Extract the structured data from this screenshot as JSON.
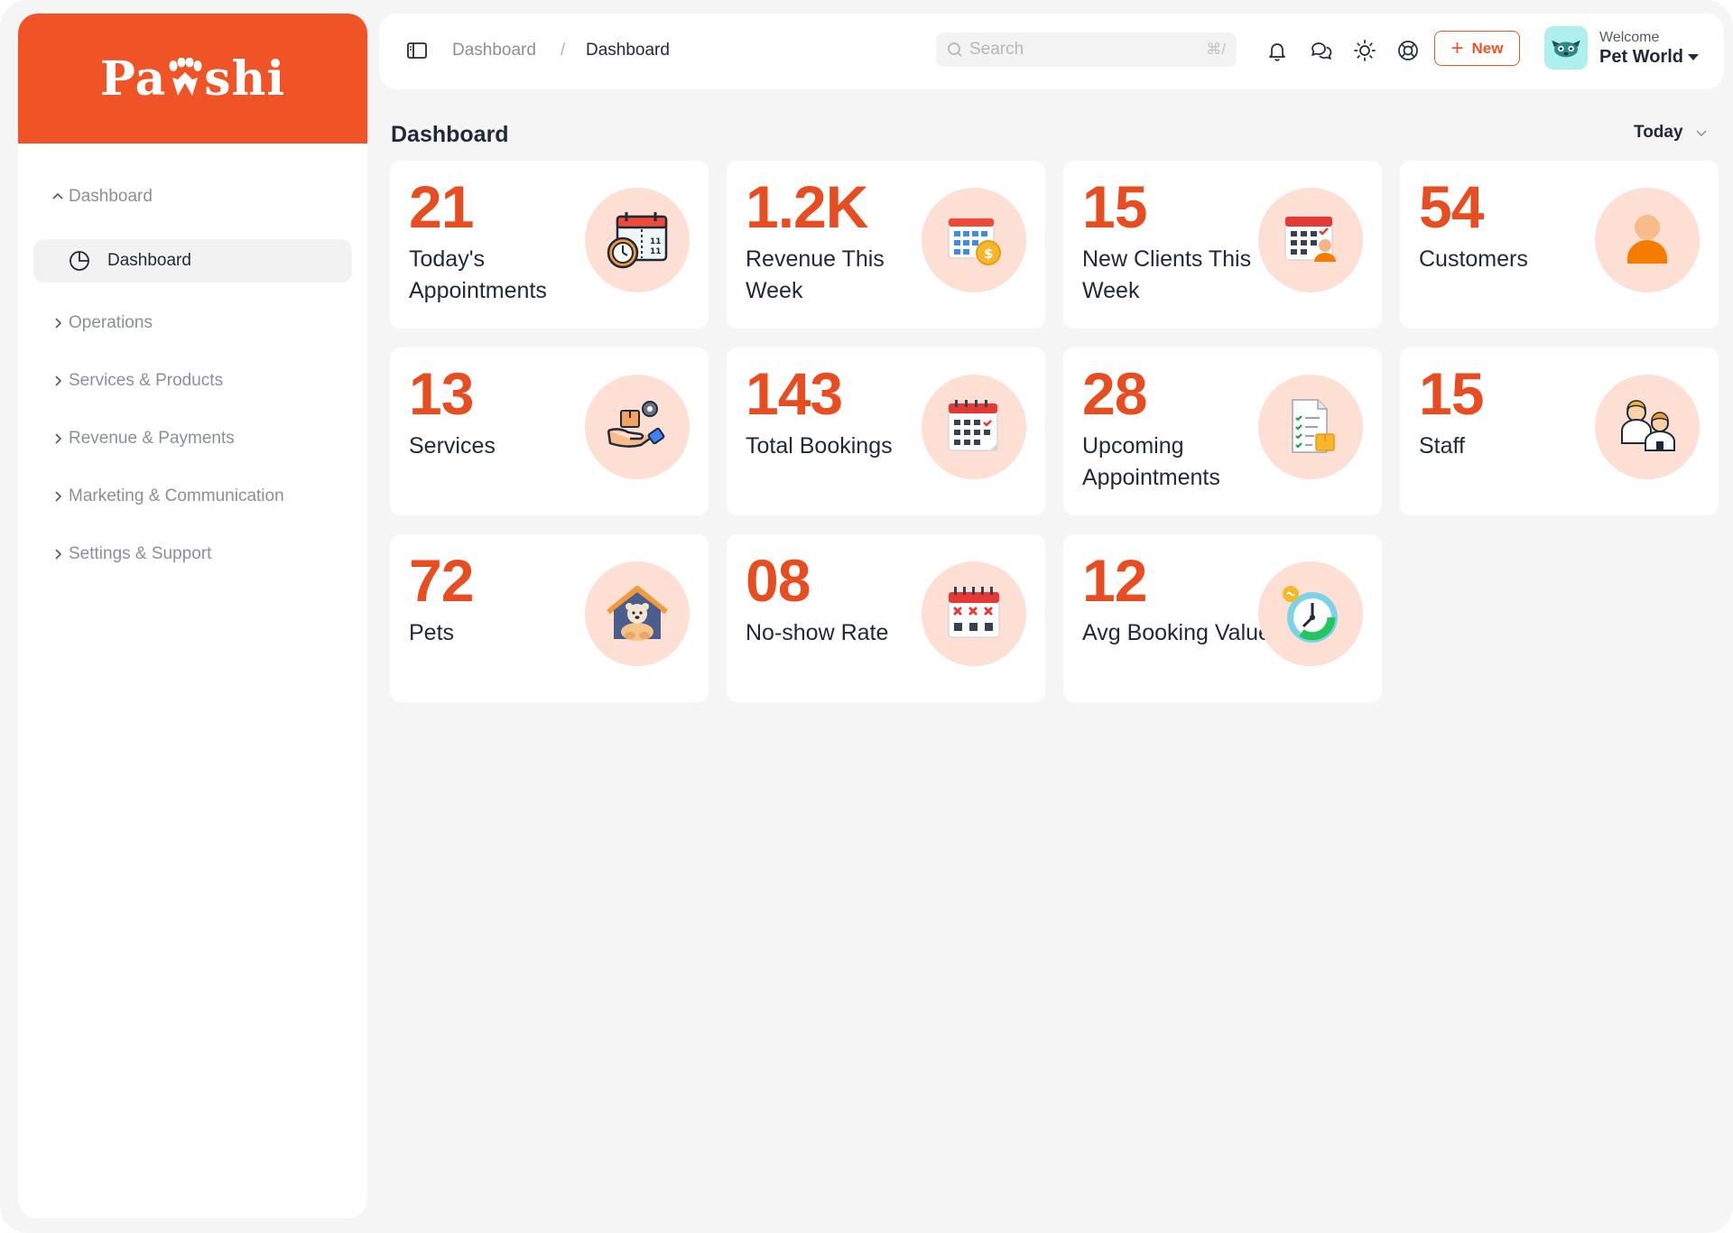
{
  "brand": {
    "name_left": "Pa",
    "name_right": "shi",
    "color": "#f05426"
  },
  "sidebar": {
    "sections": [
      {
        "label": "Dashboard",
        "expanded": true
      },
      {
        "label": "Operations",
        "expanded": false
      },
      {
        "label": "Services & Products",
        "expanded": false
      },
      {
        "label": "Revenue & Payments",
        "expanded": false
      },
      {
        "label": "Marketing & Communication",
        "expanded": false
      },
      {
        "label": "Settings & Support",
        "expanded": false
      }
    ],
    "active_item": {
      "label": "Dashboard",
      "icon": "pie-chart-icon"
    }
  },
  "header": {
    "breadcrumb": [
      "Dashboard",
      "Dashboard"
    ],
    "breadcrumb_separator": "/",
    "search": {
      "placeholder": "Search",
      "shortcut": "⌘/"
    },
    "icons": [
      "bell-icon",
      "chat-icon",
      "sun-icon",
      "help-icon"
    ],
    "new_button": "New",
    "user": {
      "greeting": "Welcome",
      "name": "Pet World"
    }
  },
  "main": {
    "title": "Dashboard",
    "date_range": "Today",
    "cards": [
      {
        "value": "21",
        "label": "Today's Appointments",
        "icon": "calendar-clock-icon"
      },
      {
        "value": "1.2K",
        "label": "Revenue This Week",
        "icon": "calendar-dollar-icon"
      },
      {
        "value": "15",
        "label": "New Clients This Week",
        "icon": "calendar-user-icon"
      },
      {
        "value": "54",
        "label": "Customers",
        "icon": "user-icon"
      },
      {
        "value": "13",
        "label": "Services",
        "icon": "service-hand-icon"
      },
      {
        "value": "143",
        "label": "Total Bookings",
        "icon": "calendar-check-icon"
      },
      {
        "value": "28",
        "label": "Upcoming Appointments",
        "icon": "checklist-icon"
      },
      {
        "value": "15",
        "label": "Staff",
        "icon": "staff-icon"
      },
      {
        "value": "72",
        "label": "Pets",
        "icon": "pet-house-icon"
      },
      {
        "value": "08",
        "label": "No-show Rate",
        "icon": "calendar-cross-icon"
      },
      {
        "value": "12",
        "label": "Avg Booking Value",
        "icon": "clock-cycle-icon"
      }
    ]
  },
  "colors": {
    "accent": "#f05426",
    "value_text": "#e84d21",
    "icon_bg": "#fddfd4",
    "page_bg": "#f5f5f5"
  }
}
